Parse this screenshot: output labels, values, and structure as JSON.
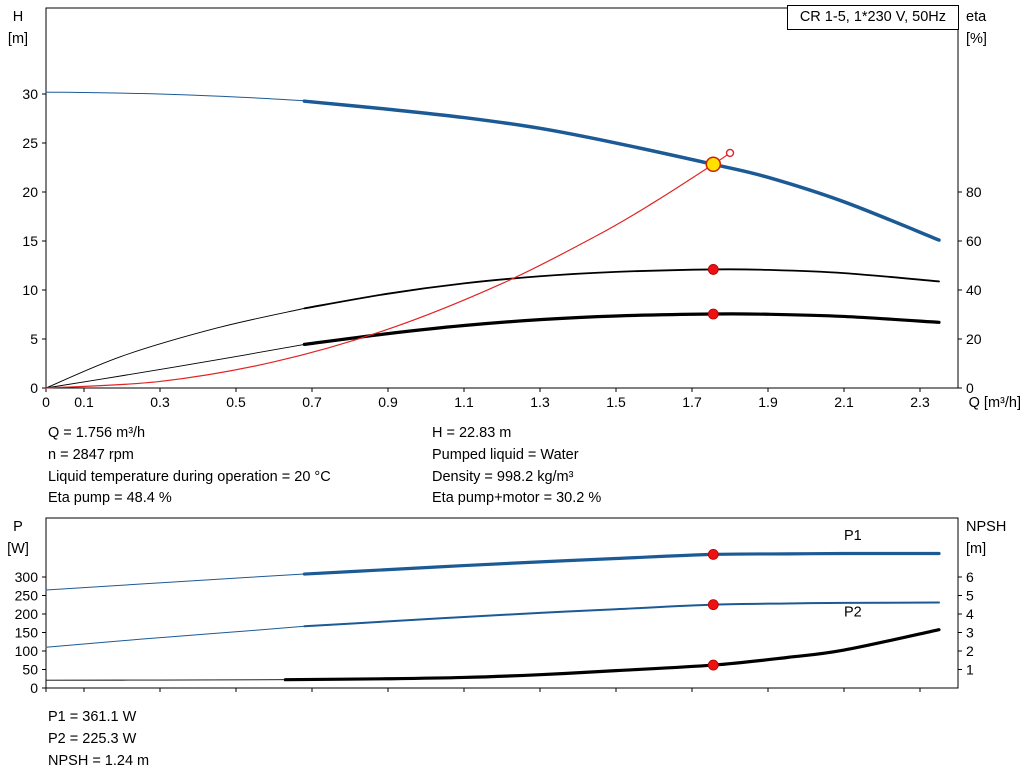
{
  "colors": {
    "curve_blue": "#1c5a96",
    "curve_black": "#000000",
    "curve_red": "#e02424",
    "marker_red": "#ee1111",
    "marker_yellow": "#ffe200",
    "axis_black": "#000000"
  },
  "readouts": {
    "top_left": [
      "Q = 1.756 m³/h",
      "n = 2847 rpm",
      "Liquid temperature during operation = 20 °C",
      "Eta pump = 48.4 %"
    ],
    "top_right": [
      "H = 22.83 m",
      "Pumped liquid = Water",
      "Density = 998.2 kg/m³",
      "Eta pump+motor = 30.2 %"
    ],
    "bottom": [
      "P1 = 361.1 W",
      "P2 = 225.3 W",
      "NPSH = 1.24 m"
    ]
  },
  "chart_data": [
    {
      "type": "line",
      "name": "qh-eta-chart",
      "title": "CR 1-5, 1*230 V, 50Hz",
      "x_axis": {
        "label": "Q [m³/h]",
        "range": [
          0,
          2.4
        ],
        "tick_values": [
          0,
          0.1,
          0.3,
          0.5,
          0.7,
          0.9,
          1.1,
          1.3,
          1.5,
          1.7,
          1.9,
          2.1,
          2.3
        ],
        "tick_labels": [
          "0",
          "0.1",
          "0.3",
          "0.5",
          "0.7",
          "0.9",
          "1.1",
          "1.3",
          "1.5",
          "1.7",
          "1.9",
          "2.1",
          "2.3"
        ],
        "show_labels": true
      },
      "y_left": {
        "corner_lines": [
          "H",
          "[m]"
        ],
        "range": [
          0,
          38.78
        ],
        "tick_values": [
          0,
          5,
          10,
          15,
          20,
          25,
          30
        ]
      },
      "y_right": {
        "corner_lines": [
          "eta",
          "[%]"
        ],
        "range": [
          0,
          155.1
        ],
        "tick_values": [
          0,
          20,
          40,
          60,
          80
        ]
      },
      "series": [
        {
          "name": "eta-pump-curve-extension",
          "axis": "right",
          "color": "#000000",
          "width": 0.9,
          "points": [
            [
              0,
              0
            ],
            [
              0.2,
              13
            ],
            [
              0.45,
              24.5
            ],
            [
              0.68,
              32.5
            ]
          ]
        },
        {
          "name": "eta-pump-motor-curve-extension",
          "axis": "right",
          "color": "#000000",
          "width": 0.9,
          "points": [
            [
              0,
              0
            ],
            [
              0.2,
              5
            ],
            [
              0.45,
              11.5
            ],
            [
              0.68,
              17.8
            ]
          ]
        },
        {
          "name": "eta-pump-curve",
          "axis": "right",
          "color": "#000000",
          "width": 1.8,
          "points": [
            [
              0.68,
              32.5
            ],
            [
              0.9,
              38.5
            ],
            [
              1.1,
              42.7
            ],
            [
              1.3,
              45.6
            ],
            [
              1.5,
              47.4
            ],
            [
              1.756,
              48.4
            ],
            [
              1.9,
              48.2
            ],
            [
              2.1,
              46.9
            ],
            [
              2.35,
              43.5
            ]
          ]
        },
        {
          "name": "eta-pump-motor-curve",
          "axis": "right",
          "color": "#000000",
          "width": 3.2,
          "points": [
            [
              0.68,
              17.8
            ],
            [
              0.9,
              22.2
            ],
            [
              1.1,
              25.5
            ],
            [
              1.3,
              27.9
            ],
            [
              1.5,
              29.4
            ],
            [
              1.756,
              30.2
            ],
            [
              1.9,
              30.1
            ],
            [
              2.1,
              29.2
            ],
            [
              2.35,
              26.8
            ]
          ]
        },
        {
          "name": "h-curve-extension",
          "axis": "left",
          "color": "#1c5a96",
          "width": 1,
          "points": [
            [
              0,
              30.2
            ],
            [
              0.25,
              30.05
            ],
            [
              0.5,
              29.7
            ],
            [
              0.7,
              29.27
            ]
          ]
        },
        {
          "name": "h-curve",
          "axis": "left",
          "color": "#1c5a96",
          "width": 3.5,
          "points": [
            [
              0.68,
              29.27
            ],
            [
              0.9,
              28.45
            ],
            [
              1.1,
              27.6
            ],
            [
              1.3,
              26.5
            ],
            [
              1.5,
              25.0
            ],
            [
              1.756,
              22.83
            ],
            [
              1.9,
              21.5
            ],
            [
              2.1,
              19.0
            ],
            [
              2.35,
              15.1
            ]
          ]
        },
        {
          "name": "system-curve",
          "axis": "left",
          "color": "#e02424",
          "width": 1.2,
          "points": [
            [
              0,
              0
            ],
            [
              0.3,
              0.67
            ],
            [
              0.6,
              2.67
            ],
            [
              0.9,
              6.0
            ],
            [
              1.2,
              10.66
            ],
            [
              1.45,
              15.56
            ],
            [
              1.6,
              18.95
            ],
            [
              1.756,
              22.83
            ],
            [
              1.8,
              23.99
            ]
          ]
        }
      ],
      "labels": [],
      "markers": [
        {
          "name": "system-curve-end-point",
          "axis": "left",
          "x": 1.8,
          "y": 23.99,
          "r": 3.5,
          "fill": "#ffffff",
          "stroke": "#e02424",
          "stroke_width": 1.4,
          "interactable": false
        },
        {
          "name": "duty-point-eta-pump",
          "axis": "right",
          "x": 1.756,
          "y": 48.4,
          "r": 5,
          "fill": "#ee1111",
          "stroke": "#b00000",
          "stroke_width": 0.8,
          "interactable": false
        },
        {
          "name": "duty-point-eta-pump-motor",
          "axis": "right",
          "x": 1.756,
          "y": 30.2,
          "r": 5,
          "fill": "#ee1111",
          "stroke": "#b00000",
          "stroke_width": 0.8,
          "interactable": false
        },
        {
          "name": "duty-point-h",
          "axis": "left",
          "x": 1.756,
          "y": 22.83,
          "r": 7,
          "fill": "#ffe200",
          "stroke": "#cc2200",
          "stroke_width": 1.5,
          "interactable": true
        }
      ]
    },
    {
      "type": "line",
      "name": "power-npsh-chart",
      "title": "",
      "x_axis": {
        "label": "",
        "range": [
          0,
          2.4
        ],
        "tick_values": [
          0,
          0.1,
          0.3,
          0.5,
          0.7,
          0.9,
          1.1,
          1.3,
          1.5,
          1.7,
          1.9,
          2.1,
          2.3
        ],
        "tick_labels": [],
        "show_labels": false
      },
      "y_left": {
        "corner_lines": [
          "P",
          "[W]"
        ],
        "range": [
          0,
          459.5
        ],
        "tick_values": [
          0,
          50,
          100,
          150,
          200,
          250,
          300
        ]
      },
      "y_right": {
        "corner_lines": [
          "NPSH",
          "[m]"
        ],
        "range": [
          0,
          9.19
        ],
        "tick_values": [
          1,
          2,
          3,
          4,
          5,
          6
        ]
      },
      "series": [
        {
          "name": "p1-curve-extension",
          "axis": "left",
          "color": "#1c5a96",
          "width": 1,
          "points": [
            [
              0,
              265
            ],
            [
              0.25,
              281
            ],
            [
              0.5,
              297
            ],
            [
              0.68,
              308
            ]
          ]
        },
        {
          "name": "p2-curve-extension",
          "axis": "left",
          "color": "#1c5a96",
          "width": 1,
          "points": [
            [
              0,
              110
            ],
            [
              0.25,
              132
            ],
            [
              0.5,
              152
            ],
            [
              0.68,
              167
            ]
          ]
        },
        {
          "name": "p1-curve",
          "axis": "left",
          "color": "#1c5a96",
          "width": 3.2,
          "points": [
            [
              0.68,
              308
            ],
            [
              0.9,
              320
            ],
            [
              1.1,
              331
            ],
            [
              1.3,
              341
            ],
            [
              1.5,
              350
            ],
            [
              1.756,
              361.1
            ],
            [
              1.95,
              362.5
            ],
            [
              2.1,
              363.5
            ],
            [
              2.35,
              363.5
            ]
          ]
        },
        {
          "name": "p2-curve",
          "axis": "left",
          "color": "#1c5a96",
          "width": 2,
          "points": [
            [
              0.68,
              167
            ],
            [
              0.9,
              180
            ],
            [
              1.1,
              192
            ],
            [
              1.3,
              203
            ],
            [
              1.5,
              213
            ],
            [
              1.756,
              225.3
            ],
            [
              1.95,
              228.5
            ],
            [
              2.1,
              230
            ],
            [
              2.35,
              231
            ]
          ]
        },
        {
          "name": "npsh-curve-extension",
          "axis": "right",
          "color": "#000000",
          "width": 0.9,
          "points": [
            [
              0,
              0.42
            ],
            [
              0.3,
              0.43
            ],
            [
              0.63,
              0.45
            ]
          ]
        },
        {
          "name": "npsh-curve",
          "axis": "right",
          "color": "#000000",
          "width": 3.2,
          "points": [
            [
              0.63,
              0.45
            ],
            [
              0.9,
              0.5
            ],
            [
              1.1,
              0.57
            ],
            [
              1.3,
              0.72
            ],
            [
              1.5,
              0.94
            ],
            [
              1.756,
              1.24
            ],
            [
              1.95,
              1.65
            ],
            [
              2.1,
              2.05
            ],
            [
              2.35,
              3.15
            ]
          ]
        }
      ],
      "labels": [
        {
          "name": "p1-curve-label",
          "text": "P1",
          "axis": "left",
          "x": 2.1,
          "y": 400,
          "color": "#1c5a96"
        },
        {
          "name": "p2-curve-label",
          "text": "P2",
          "axis": "left",
          "x": 2.1,
          "y": 193,
          "color": "#1c5a96"
        }
      ],
      "markers": [
        {
          "name": "duty-point-p1",
          "axis": "left",
          "x": 1.756,
          "y": 361.1,
          "r": 5,
          "fill": "#ee1111",
          "stroke": "#b00000",
          "stroke_width": 0.8,
          "interactable": false
        },
        {
          "name": "duty-point-p2",
          "axis": "left",
          "x": 1.756,
          "y": 225.3,
          "r": 5,
          "fill": "#ee1111",
          "stroke": "#b00000",
          "stroke_width": 0.8,
          "interactable": false
        },
        {
          "name": "duty-point-npsh",
          "axis": "right",
          "x": 1.756,
          "y": 1.24,
          "r": 5,
          "fill": "#ee1111",
          "stroke": "#b00000",
          "stroke_width": 0.8,
          "interactable": false
        }
      ]
    }
  ]
}
